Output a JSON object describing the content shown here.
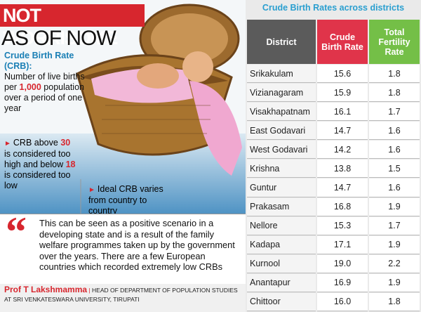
{
  "header": {
    "title_line1": "NOT WORRISOME",
    "title_line2": "AS OF NOW"
  },
  "definition": {
    "term": "Crude Birth Rate (CRB):",
    "parts": [
      "Number of live births per ",
      "1,000",
      " population over a period of one year"
    ]
  },
  "notes": [
    {
      "parts": [
        "CRB above ",
        "30",
        " is considered too high and below ",
        "18",
        " is considered too low"
      ]
    },
    {
      "parts": [
        "Ideal CRB varies from country to country"
      ]
    }
  ],
  "quote": {
    "text": "This can be seen as a positive scenario in a developing state and is a result of the family welfare programmes taken up by the government over the years. There are a few European countries which recorded extremely low CRBs",
    "author": "Prof T Lakshmamma",
    "affiliation": "HEAD OF DEPARTMENT OF POPULATION STUDIES AT SRI VENKATESWARA UNIVERSITY, TIRUPATI"
  },
  "table": {
    "title": "Crude Birth Rates across districts",
    "columns": [
      "District",
      "Crude Birth Rate",
      "Total Fertility Rate"
    ],
    "rows": [
      [
        "Srikakulam",
        "15.6",
        "1.8"
      ],
      [
        "Vizianagaram",
        "15.9",
        "1.8"
      ],
      [
        "Visakhapatnam",
        "16.1",
        "1.7"
      ],
      [
        "East Godavari",
        "14.7",
        "1.6"
      ],
      [
        "West Godavari",
        "14.2",
        "1.6"
      ],
      [
        "Krishna",
        "13.8",
        "1.5"
      ],
      [
        "Guntur",
        "14.7",
        "1.6"
      ],
      [
        "Prakasam",
        "16.8",
        "1.9"
      ],
      [
        "Nellore",
        "15.3",
        "1.7"
      ],
      [
        "Kadapa",
        "17.1",
        "1.9"
      ],
      [
        "Kurnool",
        "19.0",
        "2.2"
      ],
      [
        "Anantapur",
        "16.9",
        "1.9"
      ],
      [
        "Chittoor",
        "16.0",
        "1.8"
      ]
    ]
  }
}
